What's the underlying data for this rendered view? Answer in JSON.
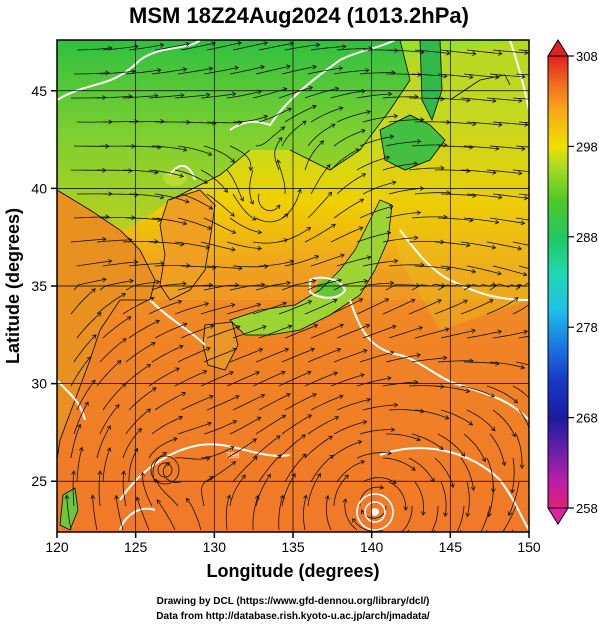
{
  "title": "MSM 18Z24Aug2024 (1013.2hPa)",
  "xlabel": "Longitude (degrees)",
  "ylabel": "Latitude  (degrees)",
  "credit_line1": "Drawing by DCL (https://www.gfd-dennou.org/library/dcl/)",
  "credit_line2": "Data from http://database.rish.kyoto-u.ac.jp/arch/jmadata/",
  "map": {
    "lon_range": [
      120,
      150
    ],
    "lat_range": [
      22.4,
      47.6
    ],
    "lon_ticks": [
      "120",
      "125",
      "130",
      "135",
      "140",
      "145",
      "150"
    ],
    "lat_ticks": [
      "25",
      "30",
      "35",
      "40",
      "45"
    ],
    "grid": true,
    "field": "surface temperature (shaded) with wind streamlines and white isotherms",
    "contour_label": "298"
  },
  "colorbar": {
    "min": 258,
    "max": 308,
    "tick_labels": [
      "308",
      "298",
      "288",
      "278",
      "268",
      "258"
    ],
    "colors": [
      "#e0207a",
      "#c21f9e",
      "#6a1fa8",
      "#1a1aa0",
      "#1838c8",
      "#1a70e0",
      "#20b8e8",
      "#20d8c0",
      "#20c878",
      "#30c030",
      "#70d020",
      "#c8e020",
      "#f0e000",
      "#f8b000",
      "#f08020",
      "#e85020",
      "#e02020"
    ]
  },
  "typhoon": {
    "name": "",
    "lon": 140.2,
    "lat": 23.8
  }
}
